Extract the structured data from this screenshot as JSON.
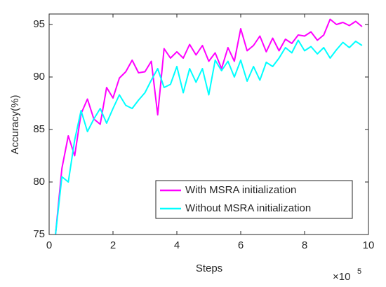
{
  "chart_data": {
    "type": "line",
    "xlabel": "Steps",
    "ylabel": "Accuracy(%)",
    "x_multiplier": "×10",
    "x_exponent": "5",
    "x": [
      0.2,
      0.4,
      0.6,
      0.8,
      1.0,
      1.2,
      1.4,
      1.6,
      1.8,
      2.0,
      2.2,
      2.4,
      2.6,
      2.8,
      3.0,
      3.2,
      3.4,
      3.6,
      3.8,
      4.0,
      4.2,
      4.4,
      4.6,
      4.8,
      5.0,
      5.2,
      5.4,
      5.6,
      5.8,
      6.0,
      6.2,
      6.4,
      6.6,
      6.8,
      7.0,
      7.2,
      7.4,
      7.6,
      7.8,
      8.0,
      8.2,
      8.4,
      8.6,
      8.8,
      9.0,
      9.2,
      9.4,
      9.6,
      9.8
    ],
    "series": [
      {
        "name": "With MSRA initialization",
        "color": "#ff00ff",
        "values": [
          75,
          81.3,
          84.4,
          82.5,
          86.5,
          87.9,
          86.0,
          85.5,
          89.0,
          88.0,
          89.9,
          90.5,
          91.6,
          90.4,
          90.5,
          91.5,
          86.4,
          92.7,
          91.8,
          92.4,
          91.8,
          93.1,
          92.1,
          93.0,
          91.5,
          92.3,
          90.8,
          92.8,
          91.5,
          94.6,
          92.5,
          93.0,
          93.9,
          92.4,
          93.7,
          92.5,
          93.6,
          93.2,
          94.0,
          93.9,
          94.3,
          93.5,
          94.0,
          95.5,
          95.0,
          95.2,
          94.9,
          95.3,
          94.8
        ]
      },
      {
        "name": "Without MSRA initialization",
        "color": "#00ffff",
        "values": [
          75,
          80.5,
          80.0,
          84.0,
          86.8,
          84.8,
          86.0,
          87.0,
          85.6,
          87.0,
          88.3,
          87.3,
          87.0,
          87.8,
          88.5,
          89.7,
          90.8,
          89.0,
          89.3,
          91.0,
          88.5,
          90.8,
          89.5,
          90.8,
          88.3,
          91.6,
          90.6,
          91.5,
          90.0,
          91.6,
          89.6,
          91.0,
          89.7,
          91.4,
          91.0,
          91.8,
          92.8,
          92.3,
          93.5,
          92.5,
          92.9,
          92.2,
          92.8,
          91.8,
          92.6,
          93.3,
          92.8,
          93.4,
          93.0
        ]
      }
    ],
    "xlim": [
      0,
      10
    ],
    "xticks": [
      0,
      2,
      4,
      6,
      8,
      10
    ],
    "ylim": [
      75,
      96
    ],
    "yticks": [
      75,
      80,
      85,
      90,
      95
    ],
    "legend": "lower right",
    "grid": false
  }
}
